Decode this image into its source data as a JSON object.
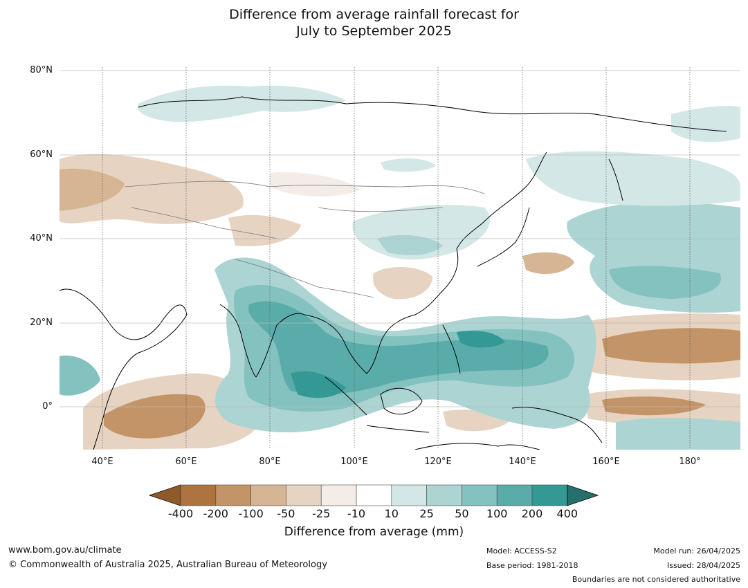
{
  "title_line1": "Difference from average rainfall forecast for",
  "title_line2": "July to September 2025",
  "lat_labels": [
    "80°N",
    "60°N",
    "40°N",
    "20°N",
    "0°"
  ],
  "lon_labels": [
    "40°E",
    "60°E",
    "80°E",
    "100°E",
    "120°E",
    "140°E",
    "160°E",
    "180°"
  ],
  "colorbar": {
    "title": "Difference from average (mm)",
    "labels": [
      "-400",
      "-200",
      "-100",
      "-50",
      "-25",
      "-10",
      "10",
      "25",
      "50",
      "100",
      "200",
      "400"
    ],
    "colors": [
      "#8f5a2a",
      "#ad7440",
      "#c39468",
      "#d5b593",
      "#e7d3c1",
      "#f4ece6",
      "#ffffff",
      "#d3e8e6",
      "#abd4d2",
      "#83c2bf",
      "#5aacaa",
      "#349995",
      "#25706c"
    ]
  },
  "colors": {
    "wet_strong": "#349995",
    "wet_mid": "#5aacaa",
    "wet_light": "#83c2bf",
    "wet_faint": "#abd4d2",
    "wet_pale": "#d3e8e6",
    "dry_pale": "#f4ece6",
    "dry_faint": "#e7d3c1",
    "dry_light": "#d5b593",
    "dry_mid": "#c39468"
  },
  "footer": {
    "website": "www.bom.gov.au/climate",
    "copyright": "© Commonwealth of Australia 2025, Australian Bureau of Meteorology",
    "model": "Model: ACCESS-S2",
    "base_period": "Base period: 1981-2018",
    "model_run": "Model run: 26/04/2025",
    "issued": "Issued: 28/04/2025",
    "disclaimer": "Boundaries are not considered authoritative"
  }
}
